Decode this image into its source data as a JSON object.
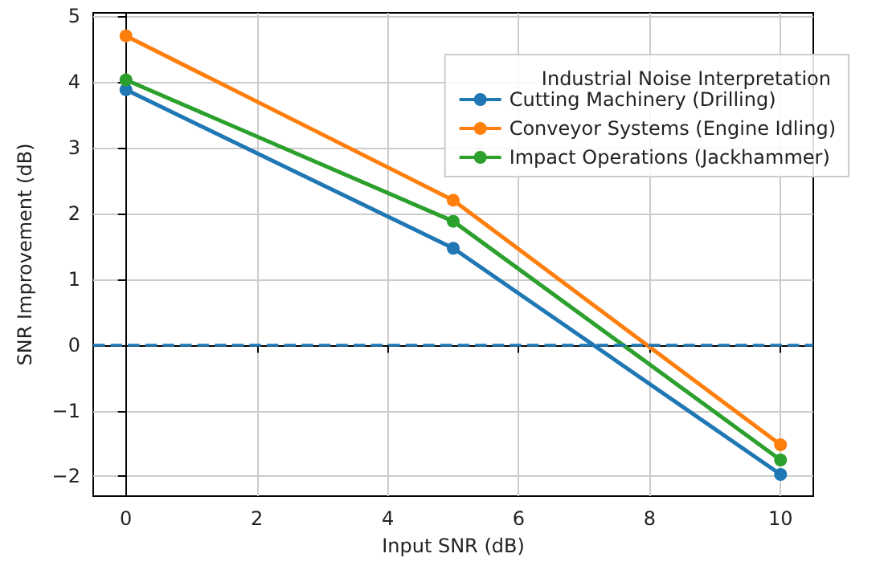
{
  "chart_data": {
    "type": "line",
    "xlabel": "Input SNR (dB)",
    "ylabel": "SNR Improvement (dB)",
    "legend_title": "Industrial Noise Interpretation",
    "x": [
      0,
      5,
      10
    ],
    "series": [
      {
        "name": "Cutting Machinery (Drilling)",
        "color": "#1f77b4",
        "values": [
          3.88,
          1.47,
          -1.97
        ]
      },
      {
        "name": "Conveyor Systems (Engine Idling)",
        "color": "#ff7f0e",
        "values": [
          4.7,
          2.2,
          -1.52
        ]
      },
      {
        "name": "Impact Operations (Jackhammer)",
        "color": "#2ca02c",
        "values": [
          4.03,
          1.88,
          -1.75
        ]
      }
    ],
    "xlim": [
      -0.5,
      10.5
    ],
    "xticks": [
      0,
      2,
      4,
      6,
      8,
      10
    ],
    "ylim": [
      -2.3,
      5.05
    ],
    "yticks": [
      -2,
      -1,
      0,
      1,
      2,
      3,
      4,
      5
    ],
    "ref_lines": [
      {
        "axis": "y",
        "value": 0,
        "color": "#1f77b4",
        "line_style": "dashed"
      }
    ],
    "grid": true,
    "legend": "top right",
    "marker": "circle",
    "line_style": "solid"
  }
}
